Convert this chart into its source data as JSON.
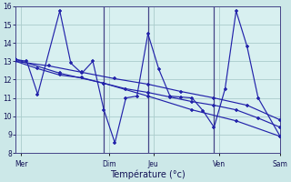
{
  "background_color": "#cce8e8",
  "plot_bg": "#d8f0f0",
  "grid_color": "#aacccc",
  "line_color": "#2222aa",
  "vline_color": "#444488",
  "xlabel": "Température (°c)",
  "ylim": [
    8,
    16
  ],
  "xlim": [
    0,
    24
  ],
  "yticks": [
    8,
    9,
    10,
    11,
    12,
    13,
    14,
    15,
    16
  ],
  "x_tick_pos": [
    0.5,
    8.5,
    12.5,
    18.5,
    24
  ],
  "x_labels": [
    "Mer",
    "Dim",
    "Jeu",
    "Ven",
    "Sam"
  ],
  "vline_pos": [
    8,
    12,
    18
  ],
  "s1_x": [
    0,
    1,
    2,
    4,
    5,
    6,
    7,
    8,
    9,
    10,
    11,
    12,
    13,
    14,
    15,
    16,
    17,
    18,
    19,
    20,
    21,
    22,
    24
  ],
  "s1_y": [
    13.1,
    13.0,
    11.2,
    15.75,
    12.9,
    12.35,
    13.0,
    10.35,
    8.55,
    11.0,
    11.1,
    14.5,
    12.55,
    11.1,
    11.05,
    11.0,
    10.3,
    9.4,
    11.5,
    15.75,
    13.8,
    11.0,
    8.9
  ],
  "s2_x": [
    0,
    2,
    4,
    6,
    8,
    10,
    12,
    14,
    16,
    18,
    20,
    22,
    24
  ],
  "s2_y": [
    13.0,
    12.6,
    12.25,
    12.1,
    11.8,
    11.5,
    11.3,
    11.05,
    10.8,
    10.6,
    10.35,
    9.9,
    9.4
  ],
  "s3_x": [
    0,
    3,
    6,
    9,
    12,
    15,
    18,
    21,
    24
  ],
  "s3_y": [
    13.0,
    12.75,
    12.4,
    12.05,
    11.75,
    11.35,
    11.0,
    10.6,
    9.8
  ],
  "s4_x": [
    0,
    4,
    8,
    12,
    16,
    20,
    24
  ],
  "s4_y": [
    13.1,
    12.35,
    11.8,
    11.1,
    10.35,
    9.75,
    8.9
  ]
}
